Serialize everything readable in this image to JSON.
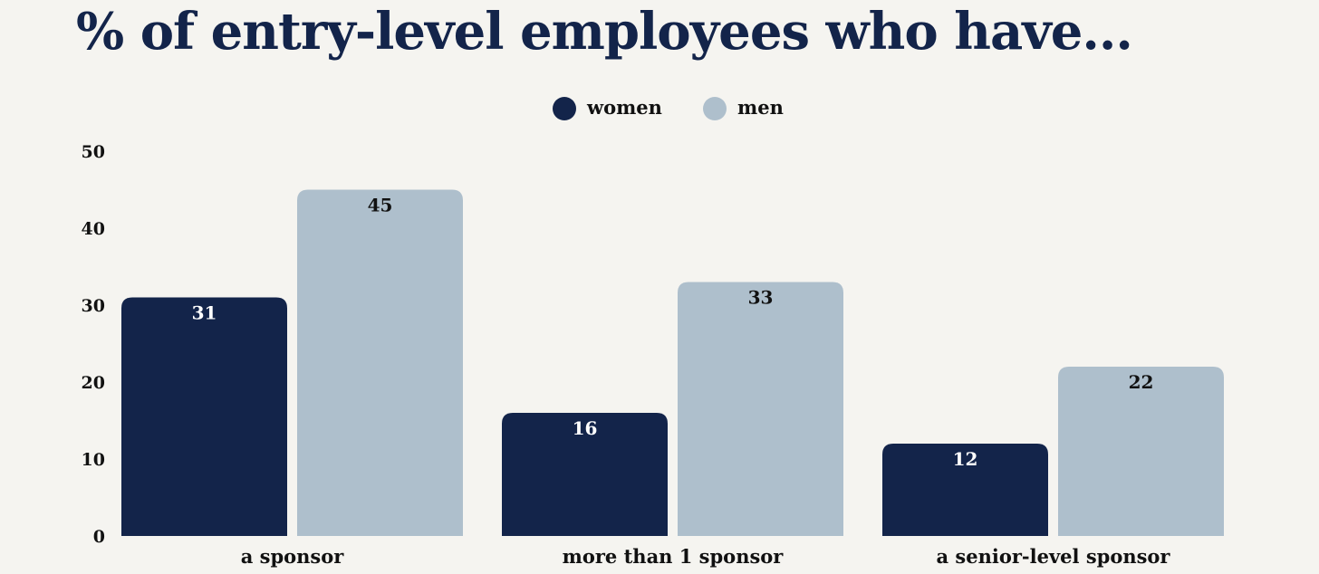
{
  "chart_data": {
    "type": "bar",
    "title": "% of entry-level employees who have...",
    "categories": [
      "a sponsor",
      "more than 1 sponsor",
      "a senior-level sponsor"
    ],
    "series": [
      {
        "name": "women",
        "values": [
          31,
          16,
          12
        ],
        "color": "#13244a",
        "label_color": "#ffffff"
      },
      {
        "name": "men",
        "values": [
          45,
          33,
          22
        ],
        "color": "#aebfcc",
        "label_color": "#111111"
      }
    ],
    "ylim": [
      0,
      50
    ],
    "yticks": [
      0,
      10,
      20,
      30,
      40,
      50
    ],
    "xlabel": "",
    "ylabel": "",
    "legend": "top-center",
    "grid": false
  }
}
